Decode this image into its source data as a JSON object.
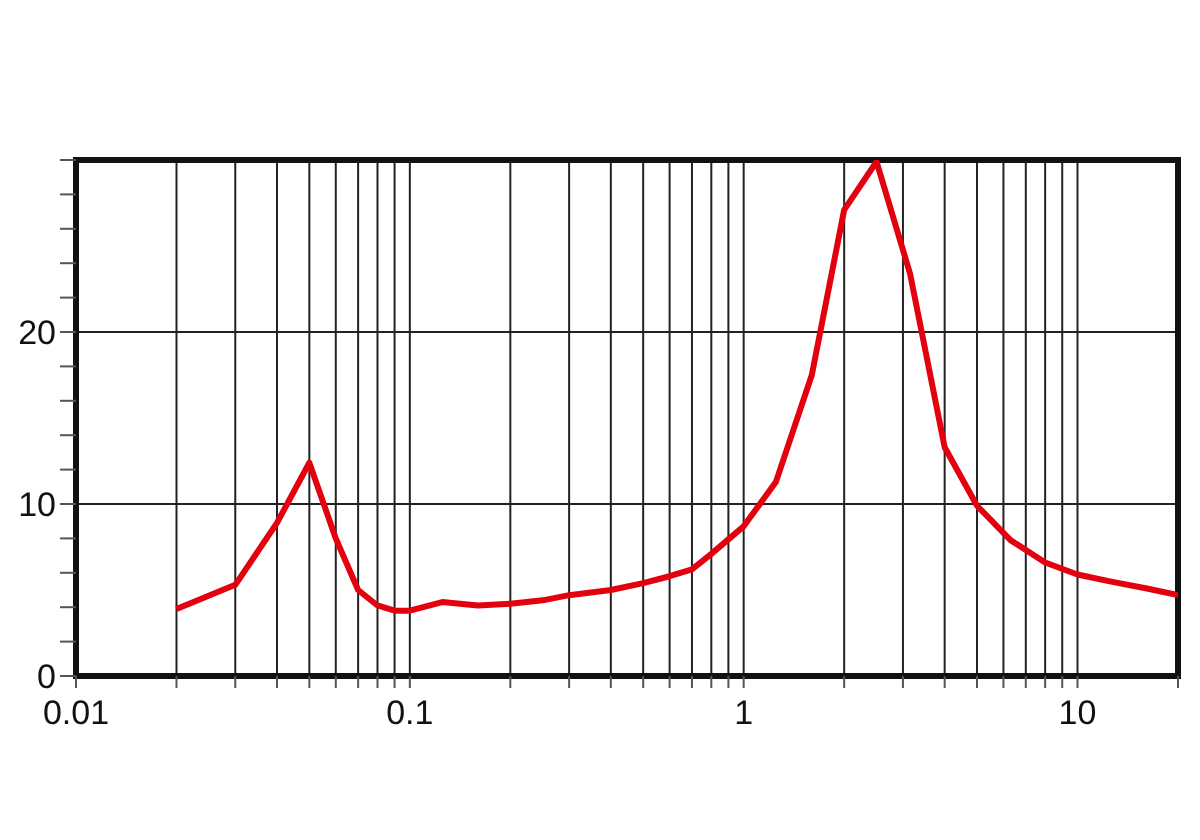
{
  "chart_data": {
    "type": "line",
    "log": "x",
    "grid": true,
    "marker": "none",
    "line_style": "solid",
    "x": [
      0.02,
      0.03,
      0.04,
      0.05,
      0.06,
      0.07,
      0.08,
      0.09,
      0.1,
      0.125,
      0.16,
      0.2,
      0.25,
      0.3,
      0.4,
      0.5,
      0.6,
      0.7,
      0.8,
      1,
      1.25,
      1.6,
      2,
      2.5,
      3.15,
      4,
      5,
      6.3,
      8,
      10,
      12.5,
      16,
      20
    ],
    "series": [
      {
        "color": "#e3000f",
        "values": [
          3.9,
          5.3,
          8.9,
          12.4,
          8,
          5,
          4.1,
          3.8,
          3.8,
          4.3,
          4.1,
          4.2,
          4.4,
          4.7,
          5,
          5.4,
          5.8,
          6.2,
          7.1,
          8.7,
          11.3,
          17.5,
          27.1,
          29.9,
          23.4,
          13.3,
          9.9,
          7.9,
          6.6,
          5.9,
          5.5,
          5.1,
          4.7
        ]
      }
    ],
    "xlim": [
      0.01,
      20
    ],
    "xticks": [
      0.01,
      {
        "value": 0.02,
        "label": null
      },
      {
        "value": 0.03,
        "label": null
      },
      {
        "value": 0.04,
        "label": null
      },
      {
        "value": 0.05,
        "label": null
      },
      {
        "value": 0.06,
        "label": null
      },
      {
        "value": 0.07,
        "label": null
      },
      {
        "value": 0.08,
        "label": null
      },
      {
        "value": 0.09,
        "label": null
      },
      0.1,
      {
        "value": 0.2,
        "label": null
      },
      {
        "value": 0.3,
        "label": null
      },
      {
        "value": 0.4,
        "label": null
      },
      {
        "value": 0.5,
        "label": null
      },
      {
        "value": 0.6,
        "label": null
      },
      {
        "value": 0.7,
        "label": null
      },
      {
        "value": 0.8,
        "label": null
      },
      {
        "value": 0.9,
        "label": null
      },
      1,
      {
        "value": 2,
        "label": null
      },
      {
        "value": 3,
        "label": null
      },
      {
        "value": 4,
        "label": null
      },
      {
        "value": 5,
        "label": null
      },
      {
        "value": 6,
        "label": null
      },
      {
        "value": 7,
        "label": null
      },
      {
        "value": 8,
        "label": null
      },
      {
        "value": 9,
        "label": null
      },
      10,
      {
        "value": 20,
        "label": null
      }
    ],
    "ylim": [
      0,
      30
    ],
    "yticks": [
      0,
      {
        "value": 2,
        "label": null
      },
      {
        "value": 4,
        "label": null
      },
      {
        "value": 6,
        "label": null
      },
      {
        "value": 8,
        "label": null
      },
      10,
      {
        "value": 12,
        "label": null
      },
      {
        "value": 14,
        "label": null
      },
      {
        "value": 16,
        "label": null
      },
      {
        "value": 18,
        "label": null
      },
      20,
      {
        "value": 22,
        "label": null
      },
      {
        "value": 24,
        "label": null
      },
      {
        "value": 26,
        "label": null
      },
      {
        "value": 28,
        "label": null
      },
      {
        "value": 30,
        "label": null
      }
    ]
  }
}
